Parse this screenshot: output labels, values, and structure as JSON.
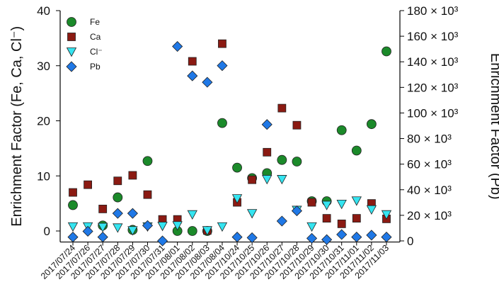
{
  "chart_data": {
    "type": "scatter",
    "categories": [
      "2017/07/24",
      "2017/07/26",
      "2017/07/27",
      "2017/07/28",
      "2017/07/29",
      "2017/07/30",
      "2017/07/31",
      "2017/08/01",
      "2017/08/02",
      "2017/08/03",
      "2017/08/04",
      "2017/10/24",
      "2017/10/25",
      "2017/10/26",
      "2017/10/27",
      "2017/10/28",
      "2017/10/29",
      "2017/10/30",
      "2017/10/31",
      "2017/11/01",
      "2017/11/02",
      "2017/11/03"
    ],
    "ylabel": "Enrichment Factor (Fe, Ca, Cl⁻)",
    "y2label": "Enrichment Factor (Pb)",
    "ylim": [
      -2,
      40
    ],
    "y2lim": [
      0,
      180000
    ],
    "yticks": [
      "0",
      "10",
      "20",
      "30",
      "40"
    ],
    "y2ticks": [
      "0",
      "20 × 10³",
      "40 × 10³",
      "60 × 10³",
      "80 × 10³",
      "100 × 10³",
      "120 × 10³",
      "140 × 10³",
      "160 × 10³",
      "180 × 10³"
    ],
    "legend_position": "top-left",
    "grid": false,
    "series": [
      {
        "name": "Fe",
        "marker": "circle",
        "color": "#1b8a2a",
        "axis": "left",
        "values": [
          4.7,
          null,
          1.0,
          6.1,
          0.2,
          12.7,
          null,
          0.0,
          0.0,
          0.0,
          19.6,
          11.5,
          9.6,
          10.5,
          12.9,
          12.6,
          5.4,
          5.4,
          18.3,
          14.6,
          19.4,
          32.6
        ]
      },
      {
        "name": "Ca",
        "marker": "square",
        "color": "#8b1a12",
        "axis": "left",
        "values": [
          7.0,
          8.4,
          4.0,
          9.1,
          10.1,
          6.6,
          2.1,
          2.1,
          30.8,
          0.1,
          34.0,
          5.2,
          9.3,
          14.3,
          22.3,
          19.2,
          5.2,
          2.3,
          1.3,
          2.3,
          5.0,
          2.2
        ]
      },
      {
        "name": "Cl⁻",
        "marker": "triangle-down",
        "color": "#35e4f0",
        "axis": "left",
        "values": [
          0.8,
          0.8,
          0.7,
          0.6,
          0.1,
          0.8,
          0.9,
          1.0,
          3.0,
          0.1,
          0.8,
          5.9,
          3.2,
          9.4,
          9.4,
          3.8,
          0.8,
          4.7,
          4.9,
          5.5,
          3.9,
          3.0
        ]
      },
      {
        "name": "Pb",
        "marker": "diamond",
        "color": "#1f78e6",
        "axis": "right",
        "values": [
          3000,
          7500,
          3000,
          21500,
          21500,
          12000,
          0,
          152000,
          129000,
          124000,
          137000,
          3000,
          2500,
          91000,
          15500,
          23500,
          2000,
          1000,
          5000,
          3000,
          4500,
          3000
        ]
      }
    ]
  }
}
